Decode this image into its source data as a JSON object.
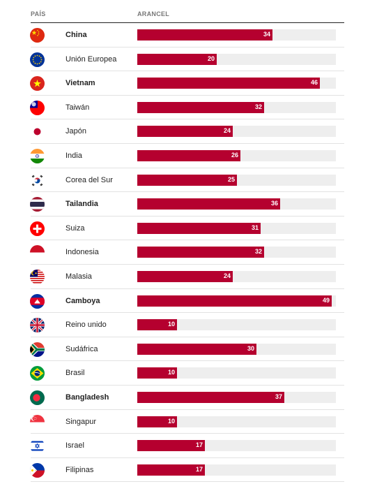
{
  "chart_data": {
    "type": "bar",
    "orientation": "horizontal",
    "columns": {
      "country": "PAÍS",
      "tariff": "ARANCEL"
    },
    "xlim": [
      0,
      50
    ],
    "categories": [
      "China",
      "Unión Europea",
      "Vietnam",
      "Taiwán",
      "Japón",
      "India",
      "Corea del Sur",
      "Tailandia",
      "Suiza",
      "Indonesia",
      "Malasia",
      "Camboya",
      "Reino unido",
      "Sudáfrica",
      "Brasil",
      "Bangladesh",
      "Singapur",
      "Israel",
      "Filipinas"
    ],
    "values": [
      34,
      20,
      46,
      32,
      24,
      26,
      25,
      36,
      31,
      32,
      24,
      49,
      10,
      30,
      10,
      37,
      10,
      17,
      17
    ],
    "bold": [
      true,
      false,
      true,
      false,
      false,
      false,
      false,
      true,
      false,
      false,
      false,
      true,
      false,
      false,
      false,
      true,
      false,
      false,
      false
    ],
    "flags": [
      "china-flag-icon",
      "eu-flag-icon",
      "vietnam-flag-icon",
      "taiwan-flag-icon",
      "japan-flag-icon",
      "india-flag-icon",
      "south-korea-flag-icon",
      "thailand-flag-icon",
      "switzerland-flag-icon",
      "indonesia-flag-icon",
      "malaysia-flag-icon",
      "cambodia-flag-icon",
      "uk-flag-icon",
      "south-africa-flag-icon",
      "brazil-flag-icon",
      "bangladesh-flag-icon",
      "singapore-flag-icon",
      "israel-flag-icon",
      "philippines-flag-icon"
    ],
    "colors": {
      "bar": "#b5002f",
      "track": "#eeeeee"
    },
    "grid": false
  }
}
